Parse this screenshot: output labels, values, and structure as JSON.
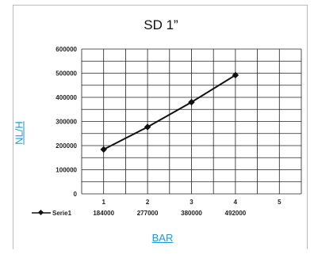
{
  "chart_data": {
    "type": "line",
    "title": "SD 1”",
    "xlabel": "BAR",
    "ylabel": "NL/H",
    "categories": [
      "1",
      "2",
      "3",
      "4",
      "5"
    ],
    "series": [
      {
        "name": "Serie1",
        "values": [
          184000,
          277000,
          380000,
          492000,
          null
        ]
      }
    ],
    "y_ticks": [
      "0",
      "100000",
      "200000",
      "300000",
      "400000",
      "500000",
      "600000"
    ],
    "table_values": [
      "184000",
      "277000",
      "380000",
      "492000"
    ],
    "ylim": [
      0,
      600000
    ],
    "grid": true,
    "line_color": "#111111"
  }
}
